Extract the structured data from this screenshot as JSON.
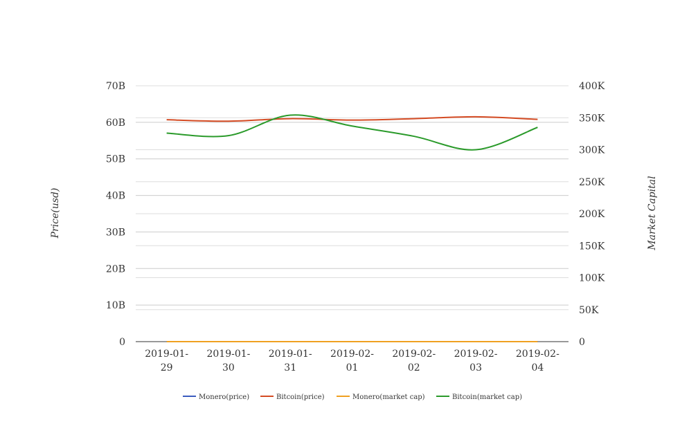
{
  "chart_data": {
    "type": "line",
    "categories": [
      "2019-01-29",
      "2019-01-30",
      "2019-01-31",
      "2019-02-01",
      "2019-02-02",
      "2019-02-03",
      "2019-02-04"
    ],
    "category_labels": [
      [
        "2019-01-",
        "29"
      ],
      [
        "2019-01-",
        "30"
      ],
      [
        "2019-01-",
        "31"
      ],
      [
        "2019-02-",
        "01"
      ],
      [
        "2019-02-",
        "02"
      ],
      [
        "2019-02-",
        "03"
      ],
      [
        "2019-02-",
        "04"
      ]
    ],
    "y_left": {
      "title": "Price(usd)",
      "ylim": [
        0,
        70000000000
      ],
      "ticks": [
        0,
        10000000000,
        20000000000,
        30000000000,
        40000000000,
        50000000000,
        60000000000,
        70000000000
      ],
      "tick_labels": [
        "0",
        "10B",
        "20B",
        "30B",
        "40B",
        "50B",
        "60B",
        "70B"
      ]
    },
    "y_right": {
      "title": "Market Capital",
      "ylim": [
        0,
        400000
      ],
      "ticks": [
        0,
        50000,
        100000,
        150000,
        200000,
        250000,
        300000,
        350000,
        400000
      ],
      "tick_labels": [
        "0",
        "50K",
        "100K",
        "150K",
        "200K",
        "250K",
        "300K",
        "350K",
        "400K"
      ]
    },
    "series": [
      {
        "name": "Monero(price)",
        "axis": "left",
        "color": "#3a5bbf",
        "values": [
          0,
          0,
          0,
          0,
          0,
          0,
          0
        ]
      },
      {
        "name": "Bitcoin(price)",
        "axis": "left",
        "color": "#d44a22",
        "values": [
          60700000000,
          60300000000,
          61000000000,
          60600000000,
          61000000000,
          61500000000,
          60800000000
        ]
      },
      {
        "name": "Monero(market cap)",
        "axis": "right",
        "color": "#f0a020",
        "values": [
          0,
          0,
          0,
          0,
          0,
          0,
          0
        ]
      },
      {
        "name": "Bitcoin(market cap)",
        "axis": "right",
        "color": "#2a9a2a",
        "values": [
          326000,
          322000,
          354000,
          337000,
          321000,
          300000,
          335000
        ]
      }
    ],
    "grid": true,
    "legend_position": "bottom"
  }
}
